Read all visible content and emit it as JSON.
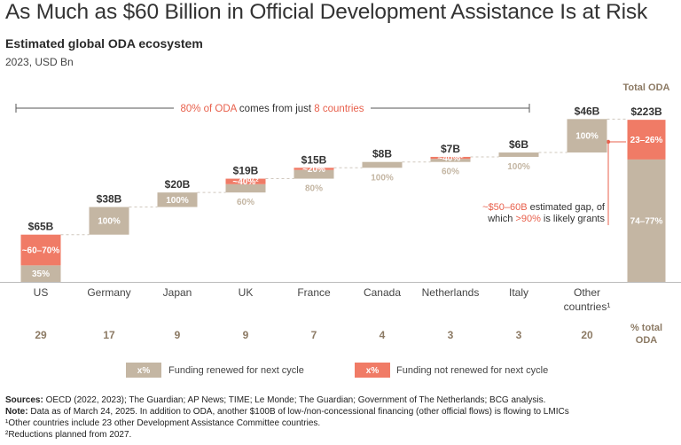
{
  "title": "As Much as $60 Billion in Official Development Assistance Is at Risk",
  "subtitle": "Estimated global ODA ecosystem",
  "units": "2023, USD Bn",
  "colors": {
    "renewed": "#c4b6a3",
    "not_renewed": "#f07b66",
    "highlight": "#e8604c",
    "label": "#8c7a64",
    "connector": "#d0c8be"
  },
  "chart_data": {
    "type": "waterfall",
    "title": "Estimated global ODA ecosystem",
    "ylabel": "USD Bn",
    "ylim": [
      0,
      223
    ],
    "categories": [
      "US",
      "Germany",
      "Japan",
      "UK",
      "France",
      "Canada",
      "Netherlands",
      "Italy",
      "Other countries¹"
    ],
    "values": [
      65,
      38,
      20,
      19,
      15,
      8,
      7,
      6,
      46
    ],
    "value_labels": [
      "$65B",
      "$38B",
      "$20B",
      "$19B",
      "$15B",
      "$8B",
      "$7B",
      "$6B",
      "$46B"
    ],
    "renewed_share_labels": [
      "35%",
      "100%",
      "100%",
      "60%",
      "80%",
      "100%",
      "60%",
      "100%",
      "100%"
    ],
    "not_renewed_share_labels": [
      "~60–70%",
      "",
      "",
      "~40%²",
      "~20%",
      "",
      "~40%²",
      "",
      ""
    ],
    "not_renewed_share": [
      0.65,
      0,
      0,
      0.4,
      0.2,
      0,
      0.4,
      0,
      0
    ],
    "pct_total_oda": [
      "29",
      "17",
      "9",
      "9",
      "7",
      "4",
      "3",
      "3",
      "20"
    ],
    "total": {
      "label": "Total ODA",
      "value": 223,
      "value_label": "$223B",
      "not_renewed_label": "23–26%",
      "renewed_label": "74–77%",
      "not_renewed_share": 0.245
    }
  },
  "annotations": {
    "bracket_pct": "80% of ODA",
    "bracket_mid": " comes from just ",
    "bracket_count": "8 countries",
    "gap_1_highlight": "~$50–60B",
    "gap_1_rest": " estimated gap, of",
    "gap_2_pre": "which ",
    "gap_2_highlight": ">90%",
    "gap_2_rest": " is likely grants",
    "pct_total_label_1": "% total",
    "pct_total_label_2": "ODA"
  },
  "legend": {
    "renewed_swatch": "x%",
    "renewed_label": "Funding renewed for next cycle",
    "not_renewed_swatch": "x%",
    "not_renewed_label": "Funding not renewed for next cycle"
  },
  "footer": {
    "sources_label": "Sources:",
    "sources_text": " OECD (2022, 2023); The Guardian; AP News; TIME; Le Monde; The Guardian; Government of The Netherlands; BCG analysis.",
    "note_label": "Note:",
    "note_text": " Data as of March 24, 2025. In addition to ODA, another $100B of low-/non-concessional financing (other official flows) is flowing to LMICs",
    "footnote_1": "¹Other countries include 23 other Development Assistance Committee countries.",
    "footnote_2": "²Reductions planned from 2027."
  }
}
